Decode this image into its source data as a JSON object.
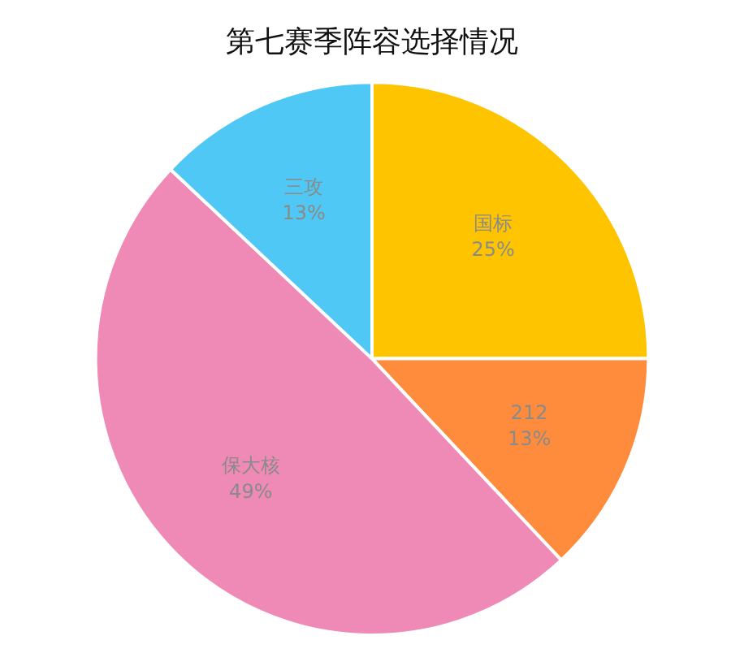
{
  "chart_data": {
    "type": "pie",
    "title": "第七赛季阵容选择情况",
    "categories": [
      "国标",
      "212",
      "保大核",
      "三攻"
    ],
    "values": [
      25,
      13,
      49,
      13
    ],
    "colors": [
      "#ffc400",
      "#ff8c3c",
      "#ee8ab5",
      "#4fc8f5"
    ],
    "value_labels": [
      "25%",
      "13%",
      "49%",
      "13%"
    ],
    "legend": false
  }
}
